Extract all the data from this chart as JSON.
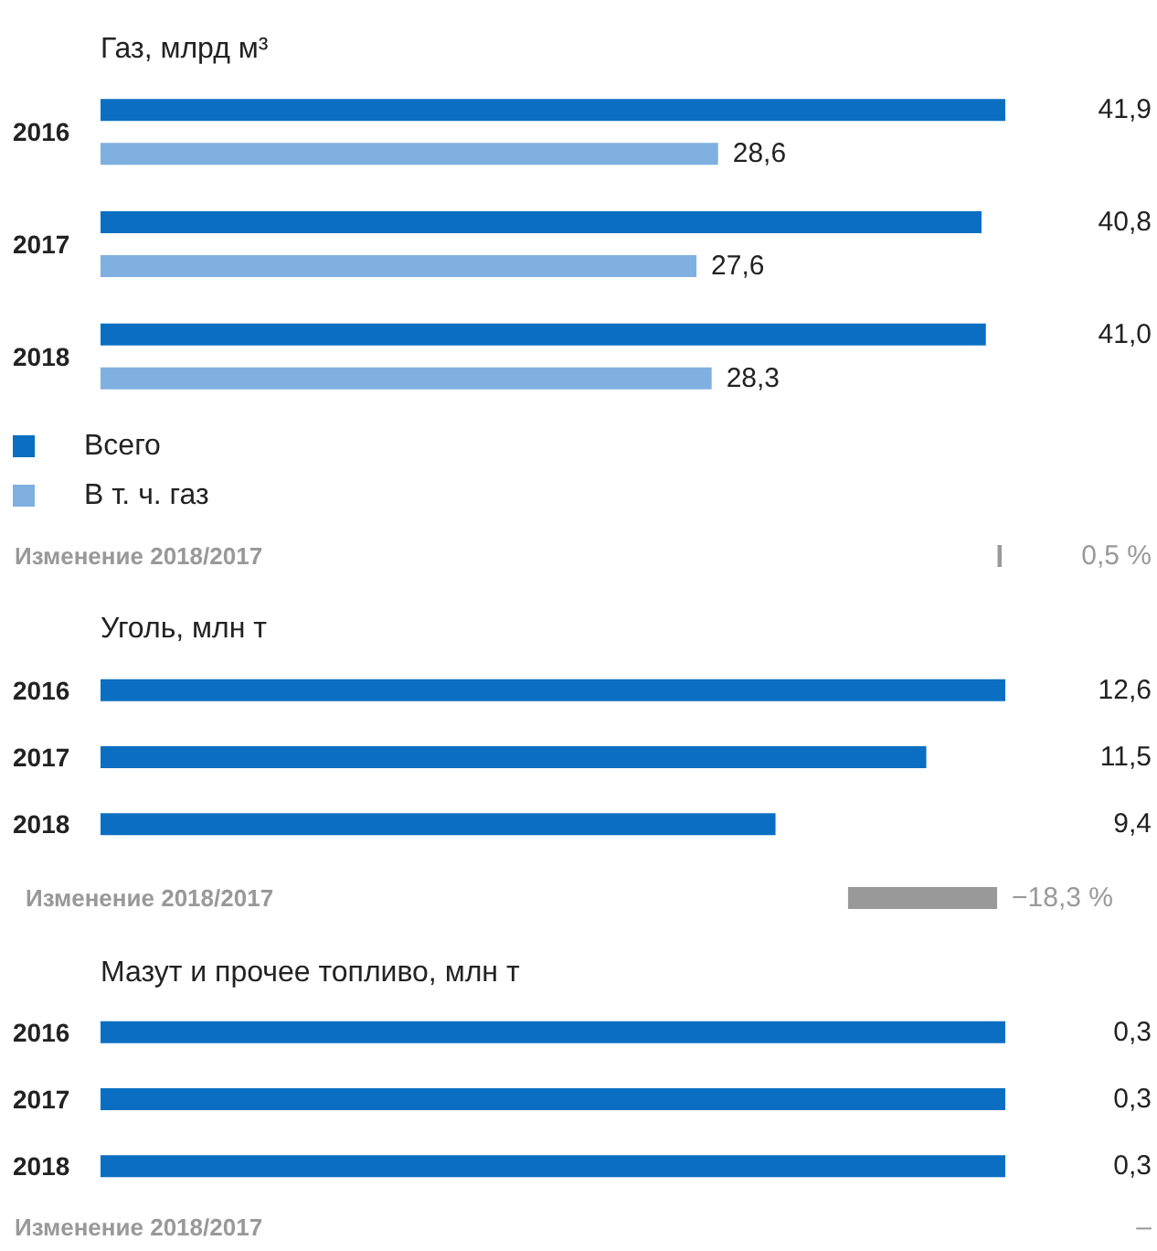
{
  "chart_data": [
    {
      "type": "bar",
      "orientation": "horizontal",
      "title": "Газ, млрд м³",
      "categories": [
        "2016",
        "2017",
        "2018"
      ],
      "tick_labels": "y",
      "legend": "bottom left",
      "series": [
        {
          "name": "Всего",
          "color": "#0a6fc2",
          "values": [
            41.9,
            40.8,
            41.0
          ],
          "value_labels": [
            "41,9",
            "40,8",
            "41,0"
          ]
        },
        {
          "name": "В т. ч. газ",
          "color": "#7fb0e0",
          "values": [
            28.6,
            27.6,
            28.3
          ],
          "value_labels": [
            "28,6",
            "27,6",
            "28,3"
          ]
        }
      ]
    },
    {
      "type": "other",
      "categories": [
        "Изменение 2018/2017"
      ],
      "color": "#999999",
      "values": [
        0.5
      ],
      "value_labels": [
        "0,5 %"
      ]
    },
    {
      "type": "bar",
      "orientation": "horizontal",
      "title": "Уголь, млн т",
      "categories": [
        "2016",
        "2017",
        "2018"
      ],
      "tick_labels": "y",
      "color": "#0a6fc2",
      "values": [
        12.6,
        11.5,
        9.4
      ],
      "value_labels": [
        "12,6",
        "11,5",
        "9,4"
      ]
    },
    {
      "type": "bar",
      "orientation": "horizontal",
      "categories": [
        "Изменение 2018/2017"
      ],
      "tick_labels": "y",
      "color": "#999999",
      "values": [
        -18.3
      ],
      "value_labels": [
        "−18,3 %"
      ]
    },
    {
      "type": "bar",
      "orientation": "horizontal",
      "title": "Мазут и прочее топливо, млн т",
      "categories": [
        "2016",
        "2017",
        "2018"
      ],
      "tick_labels": "y",
      "color": "#0a6fc2",
      "values": [
        0.3,
        0.3,
        0.3
      ],
      "value_labels": [
        "0,3",
        "0,3",
        "0,3"
      ]
    },
    {
      "type": "other",
      "annotations": [
        "Изменение 2018/2017",
        "–"
      ]
    }
  ]
}
